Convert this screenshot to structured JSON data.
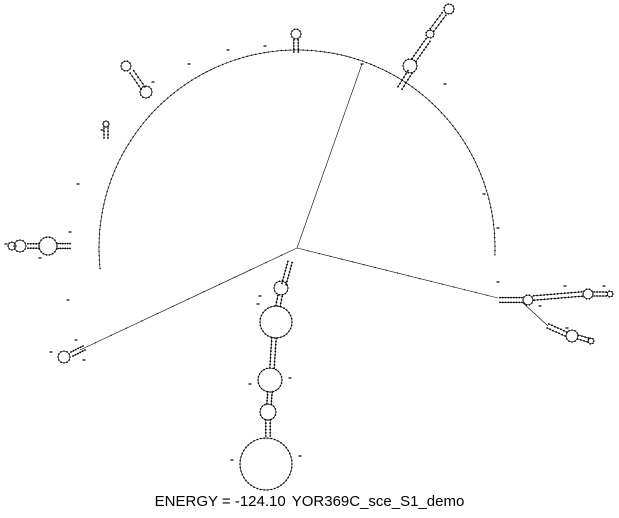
{
  "caption": {
    "energy_label": "ENERGY = -124.10",
    "sequence_name": "YOR369C_sce_S1_demo"
  },
  "colors": {
    "background": "#ffffff",
    "backbone": "#000000",
    "bases": "#000000"
  }
}
